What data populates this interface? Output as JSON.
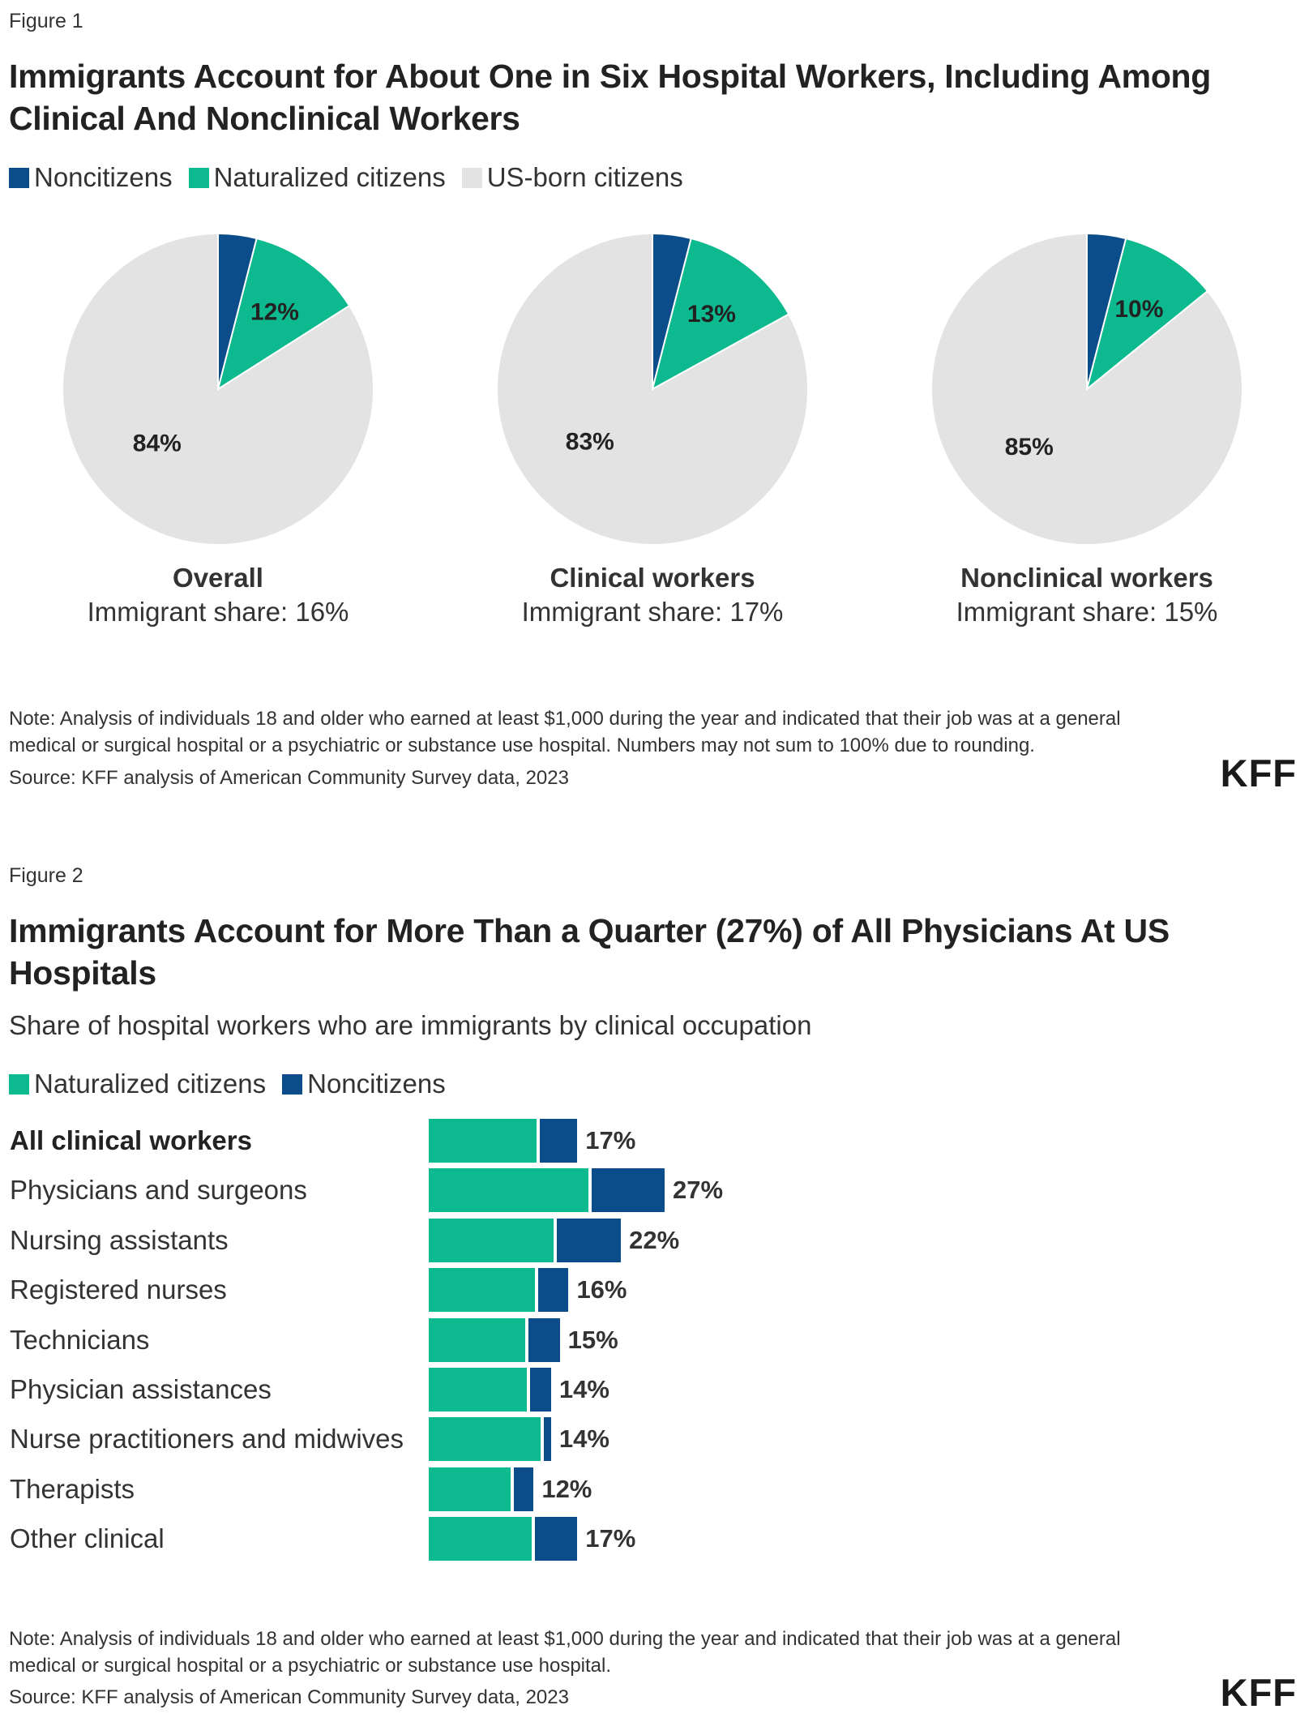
{
  "colors": {
    "noncitizens": "#0b4d8a",
    "naturalized": "#0db98f",
    "us_born": "#e3e3e3"
  },
  "figure1": {
    "label": "Figure 1",
    "title": "Immigrants Account for About One in Six Hospital Workers, Including Among Clinical And Nonclinical Workers",
    "legend": [
      "Noncitizens",
      "Naturalized citizens",
      "US-born citizens"
    ],
    "note": "Note: Analysis of individuals 18 and older who earned at least $1,000 during the year and indicated that their job was at a general medical or surgical hospital or a psychiatric or substance use hospital. Numbers may not sum to 100% due to rounding.",
    "source": "Source: KFF analysis of American Community Survey data, 2023",
    "logo": "KFF"
  },
  "figure2": {
    "label": "Figure 2",
    "title": "Immigrants Account for More Than a Quarter (27%) of All Physicians At US Hospitals",
    "subtitle": "Share of hospital workers who are immigrants by clinical occupation",
    "legend": [
      "Naturalized citizens",
      "Noncitizens"
    ],
    "note": "Note: Analysis of individuals 18 and older who earned at least $1,000 during the year and indicated that their job was at a general medical or surgical hospital or a psychiatric or substance use hospital.",
    "source": "Source: KFF analysis of American Community Survey data, 2023",
    "logo": "KFF"
  },
  "chart_data": [
    {
      "type": "pie",
      "title": "Immigrants Account for About One in Six Hospital Workers, Including Among Clinical And Nonclinical Workers",
      "legend": [
        "Noncitizens",
        "Naturalized citizens",
        "US-born citizens"
      ],
      "legend_position": "top-left",
      "pies": [
        {
          "name": "Overall",
          "share_label": "Immigrant share: 16%",
          "slices": [
            {
              "label": "Noncitizens",
              "value": 4
            },
            {
              "label": "Naturalized citizens",
              "value": 12
            },
            {
              "label": "US-born citizens",
              "value": 84
            }
          ],
          "data_labels": [
            "",
            "12%",
            "84%"
          ]
        },
        {
          "name": "Clinical workers",
          "share_label": "Immigrant share: 17%",
          "slices": [
            {
              "label": "Noncitizens",
              "value": 4
            },
            {
              "label": "Naturalized citizens",
              "value": 13
            },
            {
              "label": "US-born citizens",
              "value": 83
            }
          ],
          "data_labels": [
            "",
            "13%",
            "83%"
          ]
        },
        {
          "name": "Nonclinical workers",
          "share_label": "Immigrant share: 15%",
          "slices": [
            {
              "label": "Noncitizens",
              "value": 4
            },
            {
              "label": "Naturalized citizens",
              "value": 10
            },
            {
              "label": "US-born citizens",
              "value": 85
            }
          ],
          "data_labels": [
            "",
            "10%",
            "85%"
          ]
        }
      ]
    },
    {
      "type": "bar",
      "orientation": "horizontal",
      "stacked": true,
      "title": "Immigrants Account for More Than a Quarter (27%) of All Physicians At US Hospitals",
      "subtitle": "Share of hospital workers who are immigrants by clinical occupation",
      "legend_position": "top-left",
      "categories": [
        "All clinical workers",
        "Physicians and surgeons",
        "Nursing assistants",
        "Registered nurses",
        "Technicians",
        "Physician assistances",
        "Nurse practitioners and midwives",
        "Therapists",
        "Other clinical"
      ],
      "bold_categories": [
        "All clinical workers"
      ],
      "series": [
        {
          "name": "Naturalized citizens",
          "values": [
            12.5,
            18.5,
            14.5,
            12.3,
            11.2,
            11.4,
            13.0,
            9.6,
            12.0
          ]
        },
        {
          "name": "Noncitizens",
          "values": [
            4.5,
            8.5,
            7.5,
            3.7,
            3.8,
            2.6,
            1.0,
            2.4,
            5.0
          ]
        }
      ],
      "totals": [
        "17%",
        "27%",
        "22%",
        "16%",
        "15%",
        "14%",
        "14%",
        "12%",
        "17%"
      ],
      "xlim": [
        0,
        27
      ]
    }
  ]
}
